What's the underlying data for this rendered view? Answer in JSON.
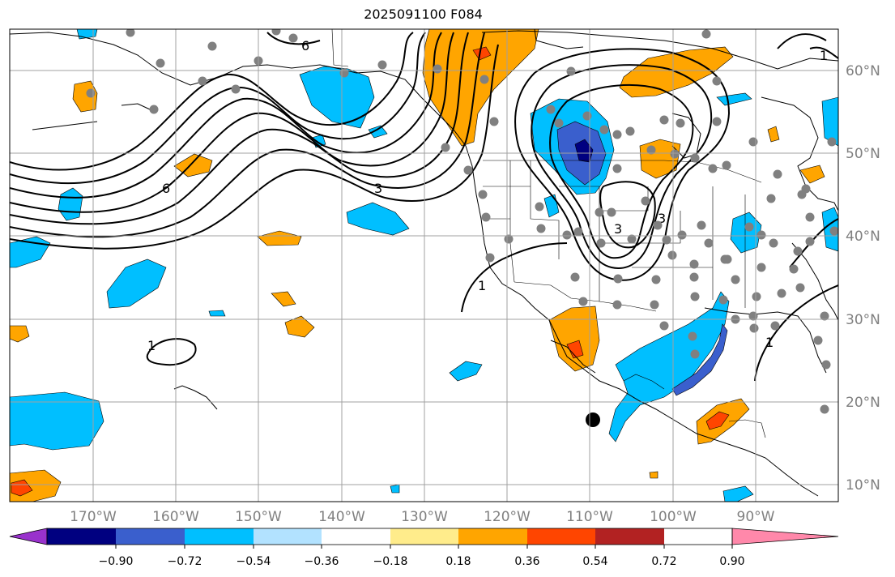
{
  "title": "2025091100 F084",
  "map": {
    "lon_labels": [
      "170°W",
      "160°W",
      "150°W",
      "140°W",
      "130°W",
      "120°W",
      "110°W",
      "100°W",
      "90°W"
    ],
    "lat_labels": [
      "60°N",
      "50°N",
      "40°N",
      "30°N",
      "20°N",
      "10°N"
    ],
    "contour_labels": [
      "6",
      "6",
      "3",
      "3",
      "3",
      "1",
      "1",
      "1",
      "1"
    ]
  },
  "colorbar": {
    "ticks": [
      "−0.90",
      "−0.72",
      "−0.54",
      "−0.36",
      "−0.18",
      "0.18",
      "0.36",
      "0.54",
      "0.72",
      "0.90"
    ],
    "colors": {
      "under": "#9932cc",
      "bins": [
        "#000080",
        "#3a5fcd",
        "#00bfff",
        "#b2e2ff",
        "#ffffff",
        "#ffec8b",
        "#ffa500",
        "#ff4500",
        "#b22222"
      ],
      "over": "#ff88aa"
    }
  },
  "shading_colors": {
    "pos1": "#ffa500",
    "pos2": "#ff4500",
    "neg1": "#00bfff",
    "neg2": "#3a5fcd",
    "neg3": "#000080",
    "neg0": "#b2e2ff"
  }
}
